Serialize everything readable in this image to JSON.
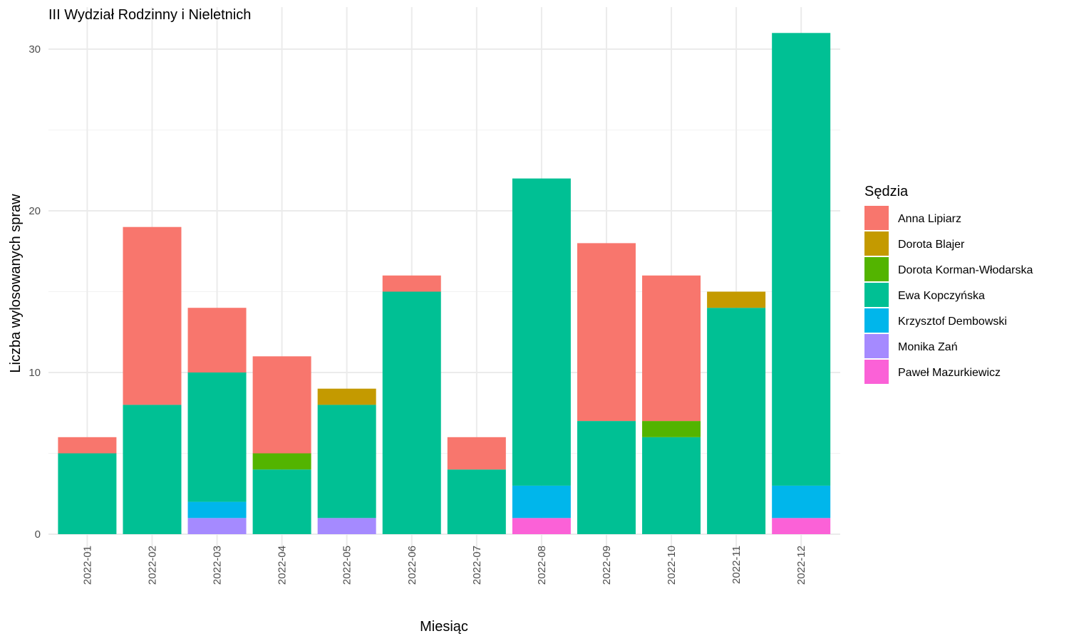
{
  "chart_data": {
    "type": "bar",
    "stacked": true,
    "title": "III Wydział Rodzinny i Nieletnich",
    "xlabel": "Miesiąc",
    "ylabel": "Liczba wylosowanych spraw",
    "ylim": [
      0,
      32.5
    ],
    "yticks": [
      0,
      10,
      20,
      30
    ],
    "grid": true,
    "legend_title": "Sędzia",
    "legend_position": "right",
    "categories": [
      "2022-01",
      "2022-02",
      "2022-03",
      "2022-04",
      "2022-05",
      "2022-06",
      "2022-07",
      "2022-08",
      "2022-09",
      "2022-10",
      "2022-11",
      "2022-12"
    ],
    "series": [
      {
        "name": "Anna Lipiarz",
        "color": "#F8766D",
        "values": [
          1,
          11,
          4,
          6,
          0,
          1,
          2,
          0,
          11,
          9,
          0,
          0
        ]
      },
      {
        "name": "Dorota Blajer",
        "color": "#C49A00",
        "values": [
          0,
          0,
          0,
          0,
          1,
          0,
          0,
          0,
          0,
          0,
          1,
          0
        ]
      },
      {
        "name": "Dorota Korman-Włodarska",
        "color": "#53B400",
        "values": [
          0,
          0,
          0,
          1,
          0,
          0,
          0,
          0,
          0,
          1,
          0,
          0
        ]
      },
      {
        "name": "Ewa Kopczyńska",
        "color": "#00C094",
        "values": [
          5,
          8,
          8,
          4,
          7,
          15,
          4,
          19,
          7,
          6,
          14,
          28
        ]
      },
      {
        "name": "Krzysztof Dembowski",
        "color": "#00B6EB",
        "values": [
          0,
          0,
          1,
          0,
          0,
          0,
          0,
          2,
          0,
          0,
          0,
          2
        ]
      },
      {
        "name": "Monika Zań",
        "color": "#A58AFF",
        "values": [
          0,
          0,
          1,
          0,
          1,
          0,
          0,
          0,
          0,
          0,
          0,
          0
        ]
      },
      {
        "name": "Paweł Mazurkiewicz",
        "color": "#FB61D7",
        "values": [
          0,
          0,
          0,
          0,
          0,
          0,
          0,
          1,
          0,
          0,
          0,
          1
        ]
      }
    ]
  }
}
